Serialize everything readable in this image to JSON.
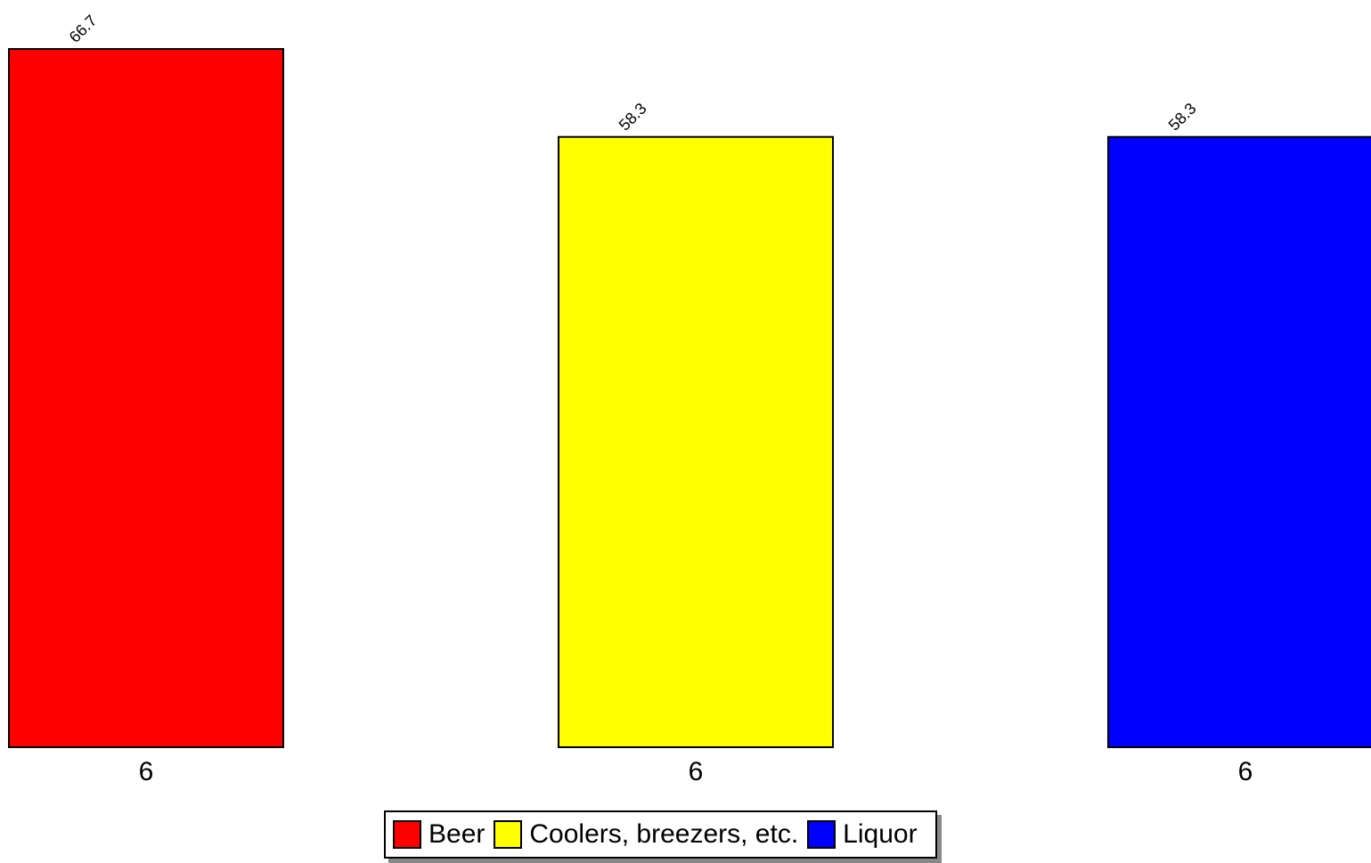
{
  "chart_data": {
    "type": "bar",
    "categories": [
      "6",
      "6",
      "6"
    ],
    "series": [
      {
        "name": "Beer",
        "color": "#ff0000",
        "values": [
          66.7,
          null,
          null
        ]
      },
      {
        "name": "Coolers, breezers, etc.",
        "color": "#ffff00",
        "values": [
          null,
          58.3,
          null
        ]
      },
      {
        "name": "Liquor",
        "color": "#0000ff",
        "values": [
          null,
          null,
          58.3
        ]
      }
    ]
  }
}
